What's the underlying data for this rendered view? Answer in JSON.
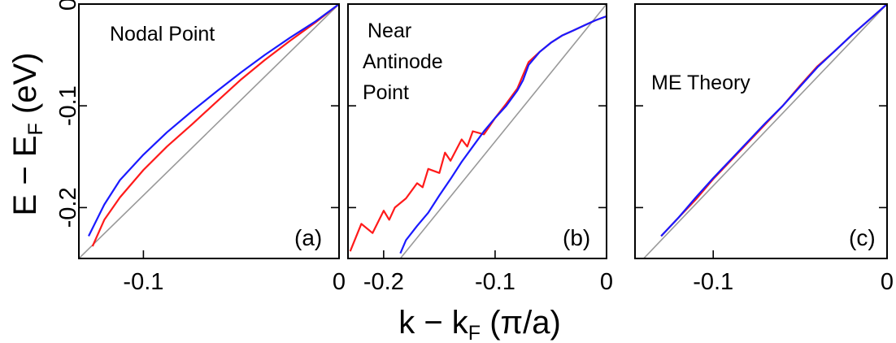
{
  "axes_text": {
    "ylabel_main": "E − E",
    "ylabel_sub": "F",
    "ylabel_unit": " (eV)",
    "xlabel_main": "k − k",
    "xlabel_sub": "F",
    "xlabel_unit": " (π/a)"
  },
  "colors": {
    "red": "#ff1a1a",
    "blue": "#1a1aff",
    "gray": "#999999"
  },
  "chart_data": [
    {
      "id": "a",
      "type": "line",
      "panel_label": "(a)",
      "annotation_lines": [
        "Nodal Point"
      ],
      "xlim": [
        -0.133,
        0
      ],
      "ylim": [
        -0.25,
        0
      ],
      "x_ticks": [
        -0.1,
        0
      ],
      "x_tick_labels": [
        "-0.1",
        "0"
      ],
      "y_ticks": [
        0,
        -0.1,
        -0.2
      ],
      "y_tick_labels": [
        "0",
        "-0.1",
        "-0.2"
      ],
      "series": [
        {
          "name": "gray",
          "color": "gray",
          "x": [
            0,
            -0.133
          ],
          "y": [
            0,
            -0.25
          ]
        },
        {
          "name": "red",
          "color": "red",
          "x": [
            0,
            -0.012,
            -0.025,
            -0.038,
            -0.05,
            -0.062,
            -0.075,
            -0.088,
            -0.1,
            -0.112,
            -0.12,
            -0.126
          ],
          "y": [
            0,
            -0.018,
            -0.036,
            -0.055,
            -0.074,
            -0.095,
            -0.118,
            -0.14,
            -0.163,
            -0.19,
            -0.212,
            -0.238
          ]
        },
        {
          "name": "blue",
          "color": "blue",
          "x": [
            0,
            -0.012,
            -0.025,
            -0.038,
            -0.05,
            -0.062,
            -0.075,
            -0.088,
            -0.1,
            -0.112,
            -0.12,
            -0.128
          ],
          "y": [
            0,
            -0.017,
            -0.033,
            -0.05,
            -0.067,
            -0.085,
            -0.105,
            -0.126,
            -0.148,
            -0.173,
            -0.197,
            -0.228
          ]
        }
      ]
    },
    {
      "id": "b",
      "type": "line",
      "panel_label": "(b)",
      "annotation_lines": [
        "Near",
        "Antinode",
        "Point"
      ],
      "xlim": [
        -0.232,
        0
      ],
      "ylim": [
        -0.25,
        0
      ],
      "x_ticks": [
        -0.2,
        -0.1,
        0
      ],
      "x_tick_labels": [
        "-0.2",
        "-0.1",
        "0"
      ],
      "y_ticks": [
        0,
        -0.1,
        -0.2
      ],
      "y_tick_labels": [],
      "series": [
        {
          "name": "gray",
          "color": "gray",
          "x": [
            0,
            -0.185
          ],
          "y": [
            0,
            -0.25
          ]
        },
        {
          "name": "red",
          "color": "red",
          "x": [
            0,
            -0.01,
            -0.02,
            -0.03,
            -0.04,
            -0.05,
            -0.06,
            -0.07,
            -0.075,
            -0.08,
            -0.09,
            -0.1,
            -0.105,
            -0.11,
            -0.12,
            -0.125,
            -0.13,
            -0.14,
            -0.145,
            -0.15,
            -0.16,
            -0.165,
            -0.17,
            -0.18,
            -0.19,
            -0.195,
            -0.2,
            -0.21,
            -0.22,
            -0.23
          ],
          "y": [
            -0.012,
            -0.016,
            -0.021,
            -0.026,
            -0.031,
            -0.038,
            -0.047,
            -0.057,
            -0.07,
            -0.083,
            -0.098,
            -0.112,
            -0.12,
            -0.128,
            -0.125,
            -0.14,
            -0.133,
            -0.154,
            -0.146,
            -0.166,
            -0.162,
            -0.18,
            -0.176,
            -0.191,
            -0.2,
            -0.212,
            -0.203,
            -0.225,
            -0.216,
            -0.243
          ]
        },
        {
          "name": "blue",
          "color": "blue",
          "x": [
            0,
            -0.01,
            -0.02,
            -0.03,
            -0.04,
            -0.05,
            -0.06,
            -0.07,
            -0.075,
            -0.08,
            -0.09,
            -0.1,
            -0.11,
            -0.12,
            -0.13,
            -0.14,
            -0.15,
            -0.16,
            -0.17,
            -0.18,
            -0.185
          ],
          "y": [
            -0.012,
            -0.016,
            -0.021,
            -0.026,
            -0.031,
            -0.038,
            -0.047,
            -0.06,
            -0.075,
            -0.085,
            -0.1,
            -0.112,
            -0.125,
            -0.14,
            -0.155,
            -0.172,
            -0.188,
            -0.205,
            -0.218,
            -0.232,
            -0.245
          ]
        }
      ]
    },
    {
      "id": "c",
      "type": "line",
      "panel_label": "(c)",
      "annotation_lines": [
        "ME Theory"
      ],
      "xlim": [
        -0.145,
        0
      ],
      "ylim": [
        -0.25,
        0
      ],
      "x_ticks": [
        -0.1,
        0
      ],
      "x_tick_labels": [
        "-0.1",
        "0"
      ],
      "y_ticks": [
        0,
        -0.1,
        -0.2
      ],
      "y_tick_labels": [],
      "series": [
        {
          "name": "gray",
          "color": "gray",
          "x": [
            0,
            -0.14
          ],
          "y": [
            0,
            -0.25
          ]
        },
        {
          "name": "red",
          "color": "red",
          "x": [
            0,
            -0.01,
            -0.02,
            -0.03,
            -0.04,
            -0.05,
            -0.06,
            -0.07,
            -0.08,
            -0.09,
            -0.1,
            -0.11,
            -0.12,
            -0.13
          ],
          "y": [
            0,
            -0.015,
            -0.03,
            -0.046,
            -0.061,
            -0.08,
            -0.1,
            -0.118,
            -0.136,
            -0.154,
            -0.172,
            -0.192,
            -0.21,
            -0.228
          ]
        },
        {
          "name": "blue",
          "color": "blue",
          "x": [
            0,
            -0.01,
            -0.02,
            -0.03,
            -0.04,
            -0.05,
            -0.06,
            -0.07,
            -0.08,
            -0.09,
            -0.1,
            -0.11,
            -0.12,
            -0.13
          ],
          "y": [
            0,
            -0.015,
            -0.03,
            -0.046,
            -0.062,
            -0.081,
            -0.1,
            -0.117,
            -0.135,
            -0.153,
            -0.171,
            -0.19,
            -0.21,
            -0.228
          ]
        }
      ]
    }
  ]
}
